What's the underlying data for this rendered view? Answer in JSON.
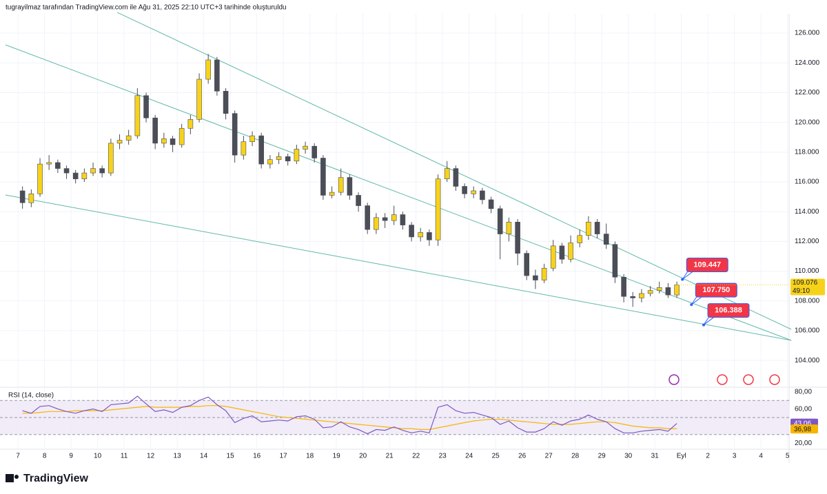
{
  "chart_data": {
    "type": "candlestick",
    "title": "tugrayilmaz tarafından TradingView.com ile Ağu 31, 2025 22:10 UTC+3 tarihinde oluşturuldu",
    "brand": "TradingView",
    "up_color": "#f7d21b",
    "down_color": "#4b4d57",
    "xlim": [
      6.53,
      36.06
    ],
    "xticks": [
      7,
      8,
      9,
      10,
      11,
      12,
      13,
      14,
      15,
      16,
      17,
      18,
      19,
      20,
      21,
      22,
      23,
      24,
      25,
      26,
      27,
      28,
      29,
      30,
      31,
      {
        "value": 32,
        "label": "Eyl"
      },
      {
        "value": 33,
        "label": "2"
      },
      {
        "value": 34,
        "label": "3"
      },
      {
        "value": 35,
        "label": "4"
      },
      {
        "value": 36,
        "label": "5"
      }
    ],
    "ylim": [
      102.2,
      127.3
    ],
    "yticks": [
      {
        "value": 104,
        "label": "104.000"
      },
      {
        "value": 106,
        "label": "106.000"
      },
      {
        "value": 108,
        "label": "108.000"
      },
      {
        "value": 110,
        "label": "110.000"
      },
      {
        "value": 112,
        "label": "112.000"
      },
      {
        "value": 114,
        "label": "114.000"
      },
      {
        "value": 116,
        "label": "116.000"
      },
      {
        "value": 118,
        "label": "118.000"
      },
      {
        "value": 120,
        "label": "120.000"
      },
      {
        "value": 122,
        "label": "122.000"
      },
      {
        "value": 124,
        "label": "124.000"
      },
      {
        "value": 126,
        "label": "126.000"
      }
    ],
    "x": [
      7.17,
      7.5,
      7.83,
      8.17,
      8.5,
      8.83,
      9.17,
      9.5,
      9.83,
      10.17,
      10.5,
      10.83,
      11.17,
      11.5,
      11.83,
      12.17,
      12.5,
      12.83,
      13.17,
      13.5,
      13.83,
      14.17,
      14.5,
      14.83,
      15.17,
      15.5,
      15.83,
      16.17,
      16.5,
      16.83,
      17.17,
      17.5,
      17.83,
      18.17,
      18.5,
      18.83,
      19.17,
      19.5,
      19.83,
      20.17,
      20.5,
      20.83,
      21.17,
      21.5,
      21.83,
      22.17,
      22.5,
      22.83,
      23.17,
      23.5,
      23.83,
      24.17,
      24.5,
      24.83,
      25.17,
      25.5,
      25.83,
      26.17,
      26.5,
      26.83,
      27.17,
      27.5,
      27.83,
      28.17,
      28.5,
      28.83,
      29.17,
      29.5,
      29.83,
      30.17,
      30.5,
      30.83,
      31.17,
      31.5,
      31.83
    ],
    "open": [
      115.4,
      114.6,
      115.2,
      117.2,
      117.3,
      116.9,
      116.6,
      116.2,
      116.6,
      116.9,
      116.6,
      118.6,
      118.8,
      119.1,
      121.8,
      120.3,
      118.6,
      118.9,
      118.5,
      119.6,
      120.2,
      122.9,
      124.2,
      122.1,
      120.6,
      117.8,
      118.7,
      119.1,
      117.2,
      117.5,
      117.7,
      117.4,
      118.2,
      118.4,
      117.6,
      115.1,
      115.3,
      116.3,
      115.1,
      114.4,
      112.8,
      113.6,
      113.4,
      113.8,
      113.1,
      112.3,
      112.6,
      112.1,
      116.2,
      116.9,
      115.7,
      115.2,
      115.4,
      114.8,
      114.2,
      112.5,
      113.3,
      111.2,
      109.7,
      109.4,
      110.2,
      111.7,
      110.8,
      111.9,
      112.4,
      113.3,
      112.5,
      111.8,
      109.6,
      108.3,
      108.2,
      108.5,
      108.7,
      108.9,
      108.4
    ],
    "high": [
      115.7,
      115.5,
      117.6,
      117.8,
      117.5,
      117.1,
      116.8,
      116.9,
      117.3,
      117.1,
      118.9,
      119.2,
      119.5,
      122.3,
      122.0,
      120.5,
      119.3,
      119.1,
      119.9,
      120.5,
      123.3,
      124.6,
      124.4,
      122.3,
      120.8,
      119.1,
      119.4,
      119.3,
      117.8,
      118.0,
      117.9,
      118.5,
      118.7,
      118.6,
      117.8,
      115.7,
      116.9,
      116.5,
      115.3,
      114.6,
      113.9,
      113.9,
      114.4,
      114.0,
      113.3,
      112.9,
      112.8,
      116.5,
      117.4,
      117.1,
      115.9,
      115.7,
      115.6,
      115.0,
      114.4,
      113.6,
      113.5,
      111.4,
      110.1,
      110.5,
      112.1,
      111.9,
      112.4,
      112.8,
      113.7,
      113.5,
      113.2,
      112.0,
      109.8,
      108.6,
      108.8,
      109.0,
      109.3,
      109.2,
      109.3
    ],
    "low": [
      114.2,
      114.3,
      115.0,
      116.8,
      116.6,
      116.2,
      115.9,
      116.0,
      116.4,
      116.3,
      116.4,
      118.2,
      118.5,
      118.9,
      120.0,
      118.2,
      118.3,
      118.0,
      118.3,
      119.2,
      120.0,
      122.6,
      121.8,
      120.2,
      117.3,
      117.5,
      118.4,
      116.9,
      116.9,
      117.2,
      117.1,
      117.2,
      117.9,
      117.3,
      114.8,
      114.9,
      115.1,
      114.8,
      114.0,
      112.5,
      112.5,
      112.9,
      113.1,
      112.8,
      112.0,
      112.0,
      111.7,
      111.7,
      116.0,
      115.4,
      114.9,
      114.9,
      114.5,
      113.9,
      110.8,
      112.0,
      110.4,
      109.4,
      108.8,
      109.2,
      110.0,
      110.5,
      110.6,
      111.6,
      112.1,
      112.2,
      111.5,
      109.2,
      107.9,
      107.6,
      107.9,
      108.3,
      108.5,
      108.2,
      108.2
    ],
    "close": [
      114.6,
      115.2,
      117.2,
      117.3,
      116.9,
      116.6,
      116.2,
      116.6,
      116.9,
      116.6,
      118.6,
      118.8,
      119.1,
      121.8,
      120.3,
      118.6,
      118.9,
      118.5,
      119.6,
      120.2,
      122.9,
      124.2,
      122.1,
      120.6,
      117.8,
      118.7,
      119.1,
      117.2,
      117.5,
      117.7,
      117.4,
      118.2,
      118.4,
      117.6,
      115.1,
      115.3,
      116.3,
      115.1,
      114.4,
      112.8,
      113.6,
      113.4,
      113.8,
      113.1,
      112.3,
      112.6,
      112.1,
      116.2,
      116.9,
      115.7,
      115.2,
      115.4,
      114.8,
      114.2,
      112.5,
      113.3,
      111.2,
      109.7,
      109.4,
      110.2,
      111.7,
      110.8,
      111.9,
      112.4,
      113.3,
      112.5,
      111.8,
      109.6,
      108.3,
      108.2,
      108.5,
      108.7,
      108.9,
      108.4,
      109.076
    ],
    "countdown": "49:10",
    "trendline_color": "#5fb8a8",
    "trendlines": [
      {
        "x": [
          10.74,
          36.14
        ],
        "y": [
          127.39,
          106.09
        ]
      },
      {
        "x": [
          6.53,
          36.14
        ],
        "y": [
          125.21,
          105.35
        ]
      },
      {
        "x": [
          6.53,
          36.14
        ],
        "y": [
          115.12,
          105.35
        ]
      }
    ],
    "callout_color": "#f23645",
    "callouts": [
      {
        "x": 32.04,
        "value": 109.447
      },
      {
        "x": 32.38,
        "value": 107.75,
        "label": "107.750"
      },
      {
        "x": 32.84,
        "value": 106.388
      }
    ],
    "rsi": {
      "name": "RSI (14, close)",
      "color": "#7e57c2",
      "ma_color": "#f7b500",
      "band_color": "#ede7f6",
      "ylim": [
        12.9,
        85.5
      ],
      "yticks": [
        {
          "value": 80,
          "label": "80,00"
        },
        {
          "value": 60,
          "label": "60,00"
        },
        {
          "value": 20,
          "label": "20,00"
        }
      ],
      "levels": [
        70,
        50,
        30
      ],
      "values": [
        58,
        55,
        63,
        64,
        60,
        57,
        55,
        58,
        60,
        57,
        65,
        66,
        67,
        75,
        66,
        57,
        59,
        56,
        62,
        64,
        70,
        74,
        65,
        58,
        44,
        49,
        52,
        45,
        46,
        47,
        46,
        51,
        52,
        48,
        38,
        39,
        45,
        39,
        36,
        31,
        36,
        35,
        39,
        35,
        32,
        34,
        32,
        62,
        65,
        58,
        55,
        56,
        53,
        50,
        42,
        46,
        38,
        33,
        33,
        37,
        45,
        41,
        46,
        48,
        53,
        48,
        45,
        37,
        32,
        32,
        34,
        35,
        36,
        34,
        43.06
      ],
      "last_label": "43,06",
      "ma": [
        55,
        55,
        56,
        57,
        57,
        57,
        58,
        58,
        58,
        58,
        59,
        60,
        61,
        62,
        63,
        62,
        62,
        62,
        62,
        63,
        63,
        64,
        64,
        63,
        61,
        59,
        57,
        55,
        53,
        51,
        50,
        49,
        48,
        47,
        46,
        45,
        44,
        43,
        42,
        41,
        40,
        39,
        38,
        37,
        37,
        36,
        36,
        38,
        40,
        42,
        44,
        46,
        47,
        48,
        48,
        47,
        46,
        45,
        44,
        43,
        42,
        42,
        42,
        43,
        44,
        45,
        45,
        44,
        42,
        40,
        39,
        38,
        38,
        37,
        36.98
      ],
      "ma_last_label": "36,98"
    }
  }
}
